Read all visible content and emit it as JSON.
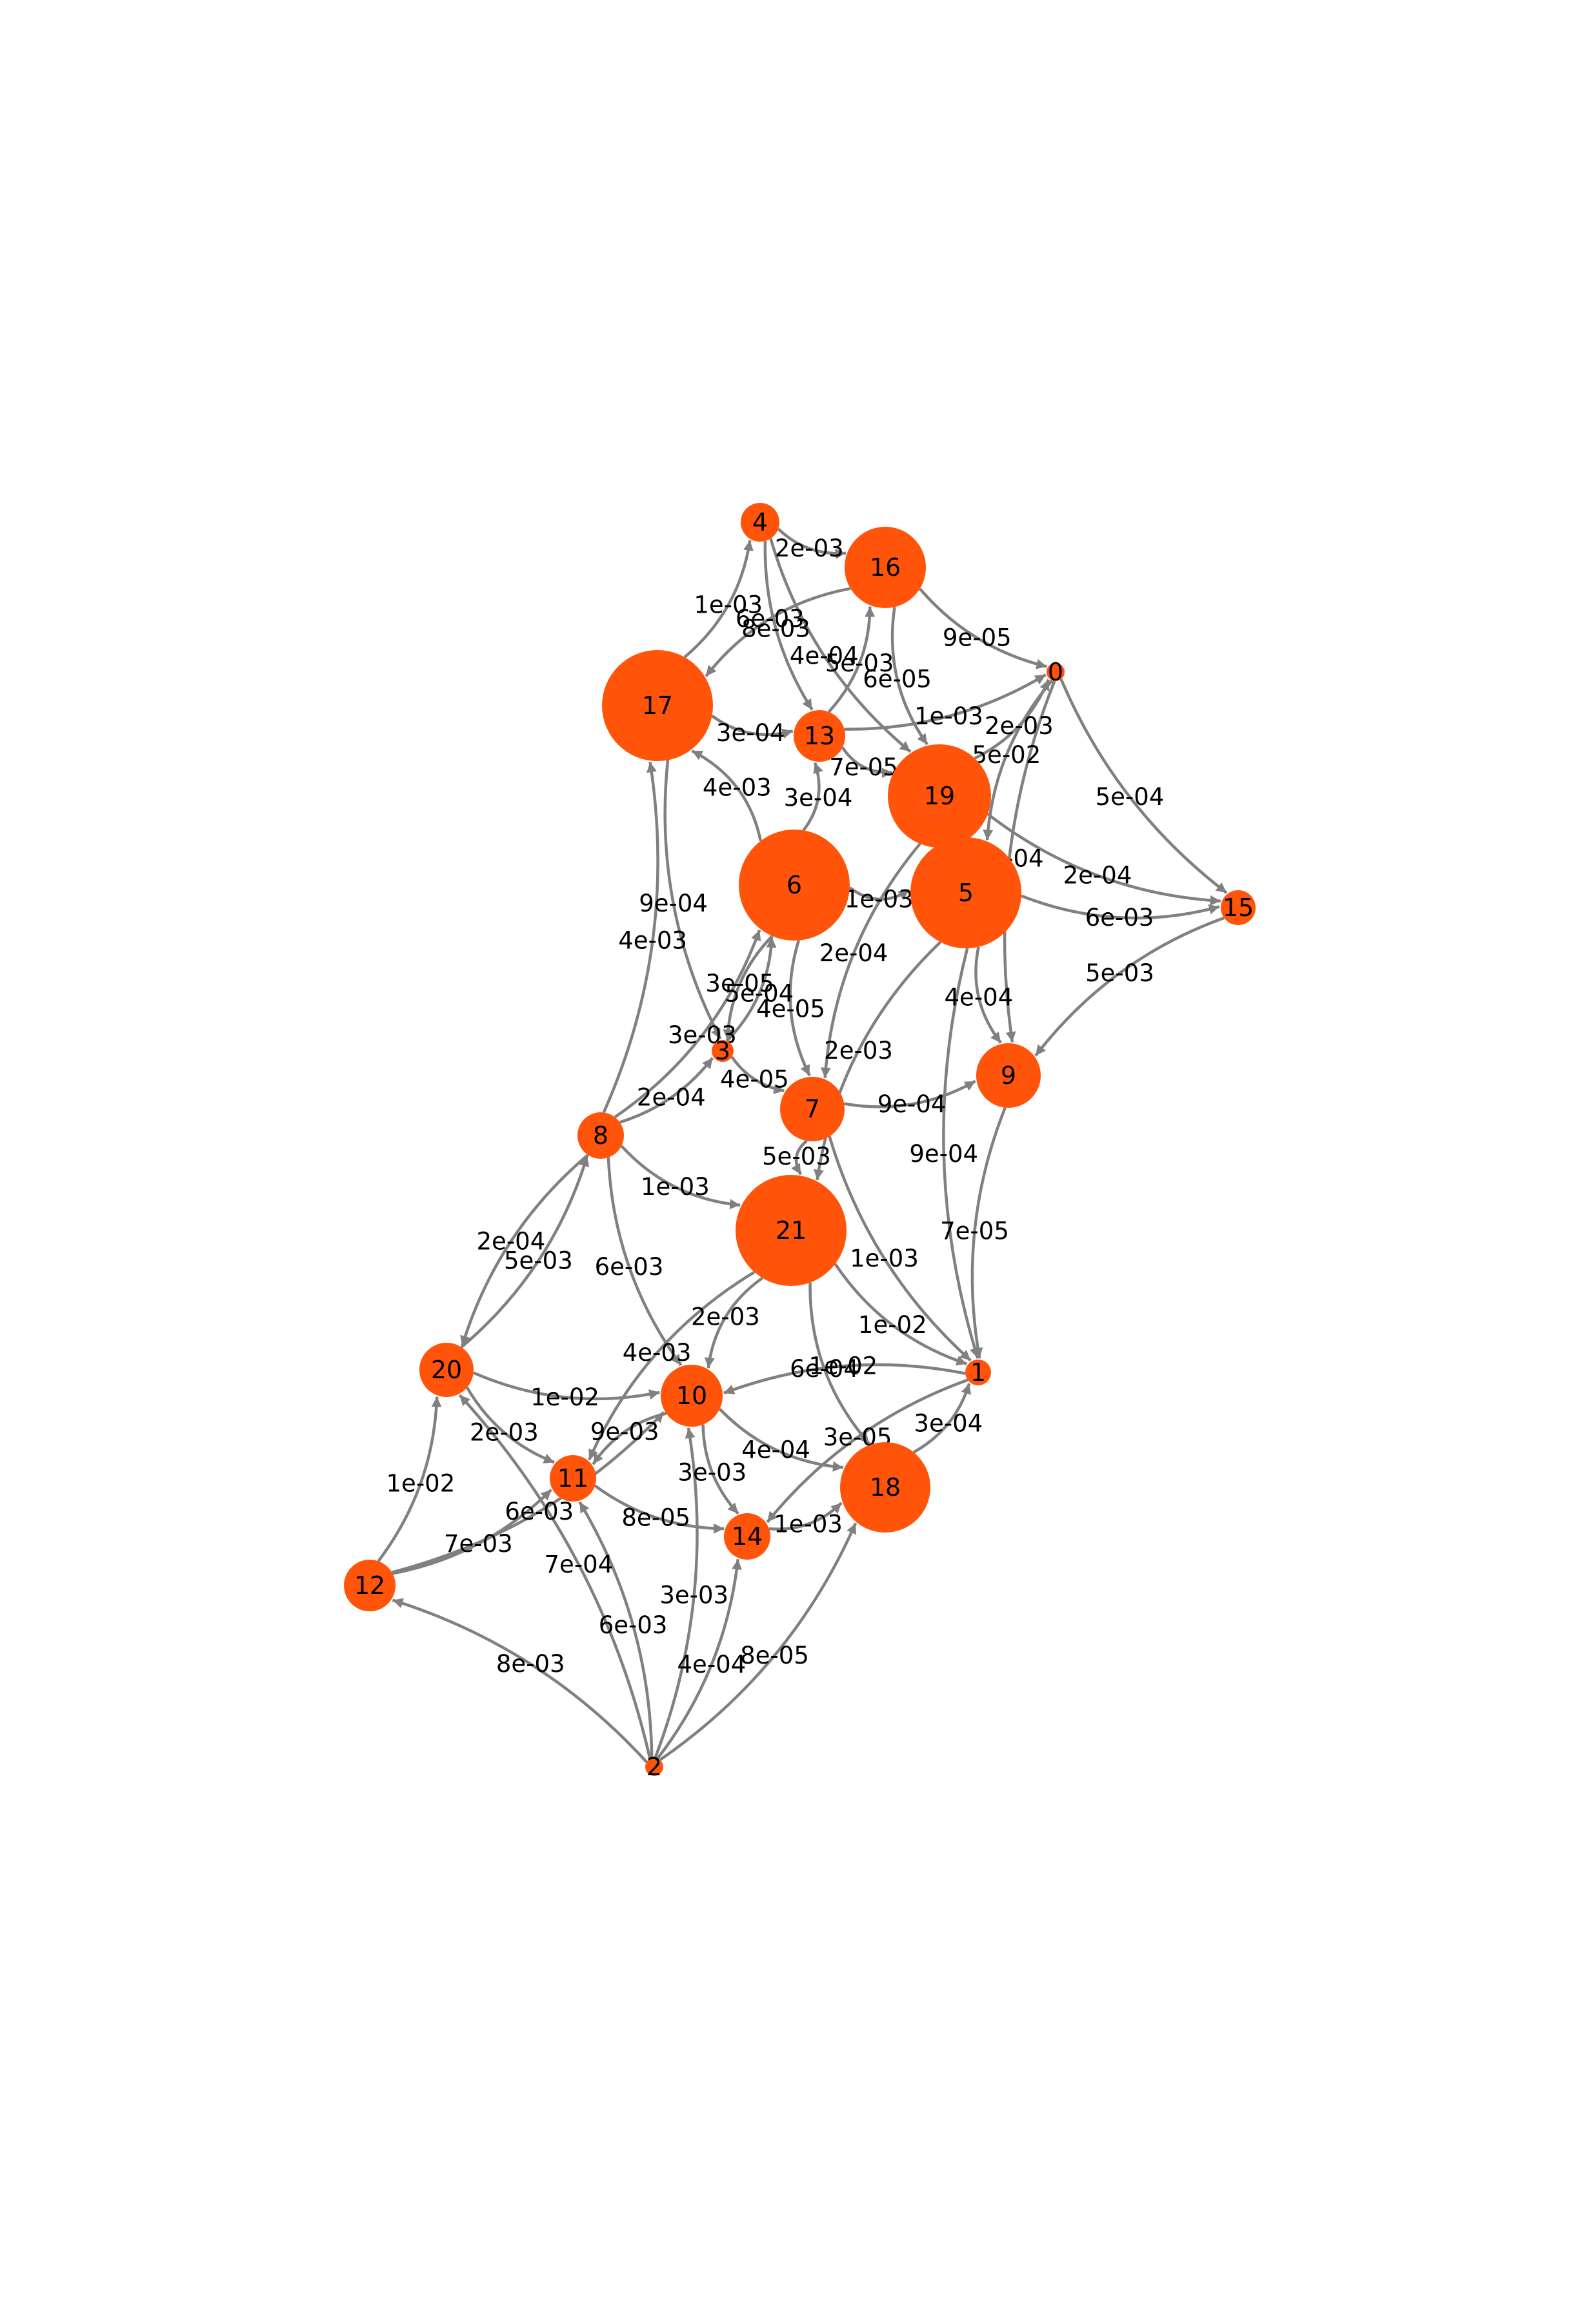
{
  "colors": {
    "node": "#FF5409",
    "edge": "#808080",
    "label": "#000000",
    "background": "#ffffff"
  },
  "nodes": [
    {
      "id": "0",
      "label": "0"
    },
    {
      "id": "1",
      "label": "1"
    },
    {
      "id": "2",
      "label": "2"
    },
    {
      "id": "3",
      "label": "3"
    },
    {
      "id": "4",
      "label": "4"
    },
    {
      "id": "5",
      "label": "5"
    },
    {
      "id": "6",
      "label": "6"
    },
    {
      "id": "7",
      "label": "7"
    },
    {
      "id": "8",
      "label": "8"
    },
    {
      "id": "9",
      "label": "9"
    },
    {
      "id": "10",
      "label": "10"
    },
    {
      "id": "11",
      "label": "11"
    },
    {
      "id": "12",
      "label": "12"
    },
    {
      "id": "13",
      "label": "13"
    },
    {
      "id": "14",
      "label": "14"
    },
    {
      "id": "15",
      "label": "15"
    },
    {
      "id": "16",
      "label": "16"
    },
    {
      "id": "17",
      "label": "17"
    },
    {
      "id": "18",
      "label": "18"
    },
    {
      "id": "19",
      "label": "19"
    },
    {
      "id": "20",
      "label": "20"
    },
    {
      "id": "21",
      "label": "21"
    }
  ],
  "edges": [
    {
      "from": "4",
      "to": "16",
      "label": "2e-03"
    },
    {
      "from": "16",
      "to": "0",
      "label": "9e-05"
    },
    {
      "from": "0",
      "to": "15",
      "label": "5e-04"
    },
    {
      "from": "17",
      "to": "4",
      "label": "1e-03"
    },
    {
      "from": "8",
      "to": "17",
      "label": "4e-03"
    },
    {
      "from": "2",
      "to": "12",
      "label": "8e-03"
    },
    {
      "from": "12",
      "to": "20",
      "label": "1e-02"
    },
    {
      "from": "20",
      "to": "8",
      "label": "5e-03"
    },
    {
      "from": "15",
      "to": "9",
      "label": "5e-03"
    },
    {
      "from": "9",
      "to": "1",
      "label": "7e-05"
    },
    {
      "from": "2",
      "to": "18",
      "label": "8e-05"
    },
    {
      "from": "2",
      "to": "14",
      "label": "4e-04"
    },
    {
      "from": "2",
      "to": "10",
      "label": "3e-03"
    },
    {
      "from": "2",
      "to": "11",
      "label": "6e-03"
    },
    {
      "from": "2",
      "to": "20",
      "label": "7e-04"
    },
    {
      "from": "12",
      "to": "11",
      "label": "7e-03"
    },
    {
      "from": "12",
      "to": "10",
      "label": "6e-03"
    },
    {
      "from": "14",
      "to": "18",
      "label": "1e-03"
    },
    {
      "from": "18",
      "to": "1",
      "label": "3e-04"
    },
    {
      "from": "11",
      "to": "14",
      "label": "8e-05"
    },
    {
      "from": "10",
      "to": "14",
      "label": "3e-03"
    },
    {
      "from": "10",
      "to": "18",
      "label": "4e-04"
    },
    {
      "from": "10",
      "to": "11",
      "label": "9e-03"
    },
    {
      "from": "20",
      "to": "10",
      "label": "1e-02"
    },
    {
      "from": "20",
      "to": "11",
      "label": "2e-03"
    },
    {
      "from": "8",
      "to": "3",
      "label": "2e-04"
    },
    {
      "from": "8",
      "to": "6",
      "label": "3e-03"
    },
    {
      "from": "8",
      "to": "21",
      "label": "1e-03"
    },
    {
      "from": "8",
      "to": "20",
      "label": "2e-04"
    },
    {
      "from": "8",
      "to": "10",
      "label": "6e-03"
    },
    {
      "from": "3",
      "to": "7",
      "label": "4e-05"
    },
    {
      "from": "3",
      "to": "6",
      "label": "5e-04"
    },
    {
      "from": "7",
      "to": "9",
      "label": "9e-04"
    },
    {
      "from": "7",
      "to": "1",
      "label": "1e-03"
    },
    {
      "from": "21",
      "to": "1",
      "label": "1e-02"
    },
    {
      "from": "21",
      "to": "18",
      "label": "6e-04"
    },
    {
      "from": "21",
      "to": "10",
      "label": "2e-03"
    },
    {
      "from": "6",
      "to": "5",
      "label": "1e-03"
    },
    {
      "from": "6",
      "to": "7",
      "label": "4e-05"
    },
    {
      "from": "6",
      "to": "17",
      "label": "4e-03"
    },
    {
      "from": "6",
      "to": "13",
      "label": "3e-04"
    },
    {
      "from": "5",
      "to": "9",
      "label": "4e-04"
    },
    {
      "from": "5",
      "to": "15",
      "label": "6e-03"
    },
    {
      "from": "19",
      "to": "15",
      "label": "2e-04"
    },
    {
      "from": "19",
      "to": "0",
      "label": "2e-03"
    },
    {
      "from": "13",
      "to": "16",
      "label": "5e-03"
    },
    {
      "from": "13",
      "to": "0",
      "label": "1e-03"
    },
    {
      "from": "17",
      "to": "13",
      "label": "3e-04"
    },
    {
      "from": "16",
      "to": "17",
      "label": "6e-03"
    },
    {
      "from": "4",
      "to": "13",
      "label": "8e-03"
    },
    {
      "from": "4",
      "to": "19",
      "label": "4e-04"
    },
    {
      "from": "0",
      "to": "5",
      "label": "5e-02"
    },
    {
      "from": "0",
      "to": "9",
      "label": "2e-04"
    },
    {
      "from": "1",
      "to": "10",
      "label": "1e-02"
    },
    {
      "from": "1",
      "to": "14",
      "label": "3e-05"
    },
    {
      "from": "19",
      "to": "7",
      "label": "2e-04"
    },
    {
      "from": "5",
      "to": "21",
      "label": "2e-03"
    },
    {
      "from": "17",
      "to": "3",
      "label": "9e-04"
    },
    {
      "from": "7",
      "to": "21",
      "label": "5e-03"
    },
    {
      "from": "21",
      "to": "11",
      "label": "4e-03"
    },
    {
      "from": "6",
      "to": "3",
      "label": "3e-05"
    },
    {
      "from": "13",
      "to": "19",
      "label": "7e-05"
    },
    {
      "from": "16",
      "to": "19",
      "label": "6e-05"
    },
    {
      "from": "5",
      "to": "1",
      "label": "9e-04"
    }
  ]
}
